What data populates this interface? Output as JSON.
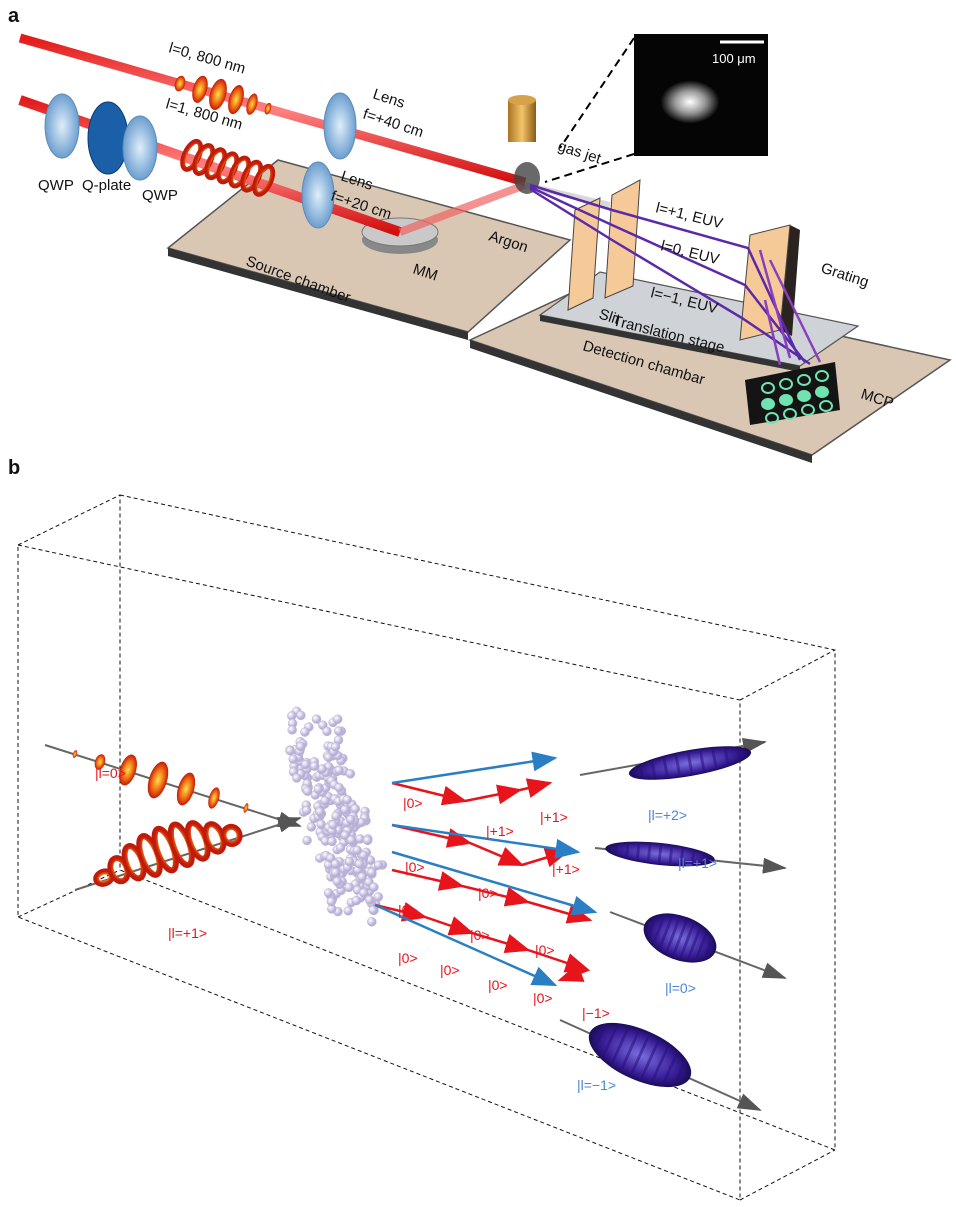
{
  "panel_a": {
    "label": "a",
    "beams": [
      "l=0, 800 nm",
      "l=1, 800 nm"
    ],
    "lens_1": [
      "Lens",
      "f=+40 cm"
    ],
    "lens_2": [
      "Lens",
      "f=+20 cm"
    ],
    "optics": [
      "QWP",
      "Q-plate",
      "QWP"
    ],
    "gas_jet": "gas jet",
    "scale_bar": "100 μm",
    "argon": "Argon",
    "mirror": "MM",
    "source_chamber": "Source chamber",
    "slit": "Slit",
    "euv_orders": [
      "l=+1, EUV",
      "l=0, EUV",
      "l=−1, EUV"
    ],
    "grating": "Grating",
    "translation_stage": "Translation stage",
    "detection_chamber": "Detection chambar",
    "detector": "MCP"
  },
  "panel_b": {
    "label": "b",
    "inputs": [
      "|l=0>",
      "|l=+1>"
    ],
    "paths": [
      [
        "|0>",
        "|+1>",
        "|+1>"
      ],
      [
        "|0>",
        "|0>",
        "|+1>"
      ],
      [
        "|0>",
        "|0>",
        "|0>"
      ],
      [
        "|0>",
        "|0>",
        "|0>",
        "|0>",
        "|−1>"
      ]
    ],
    "outputs": [
      "|l=+2>",
      "|l=+1>",
      "|l=0>",
      "|l=−1>"
    ]
  }
}
